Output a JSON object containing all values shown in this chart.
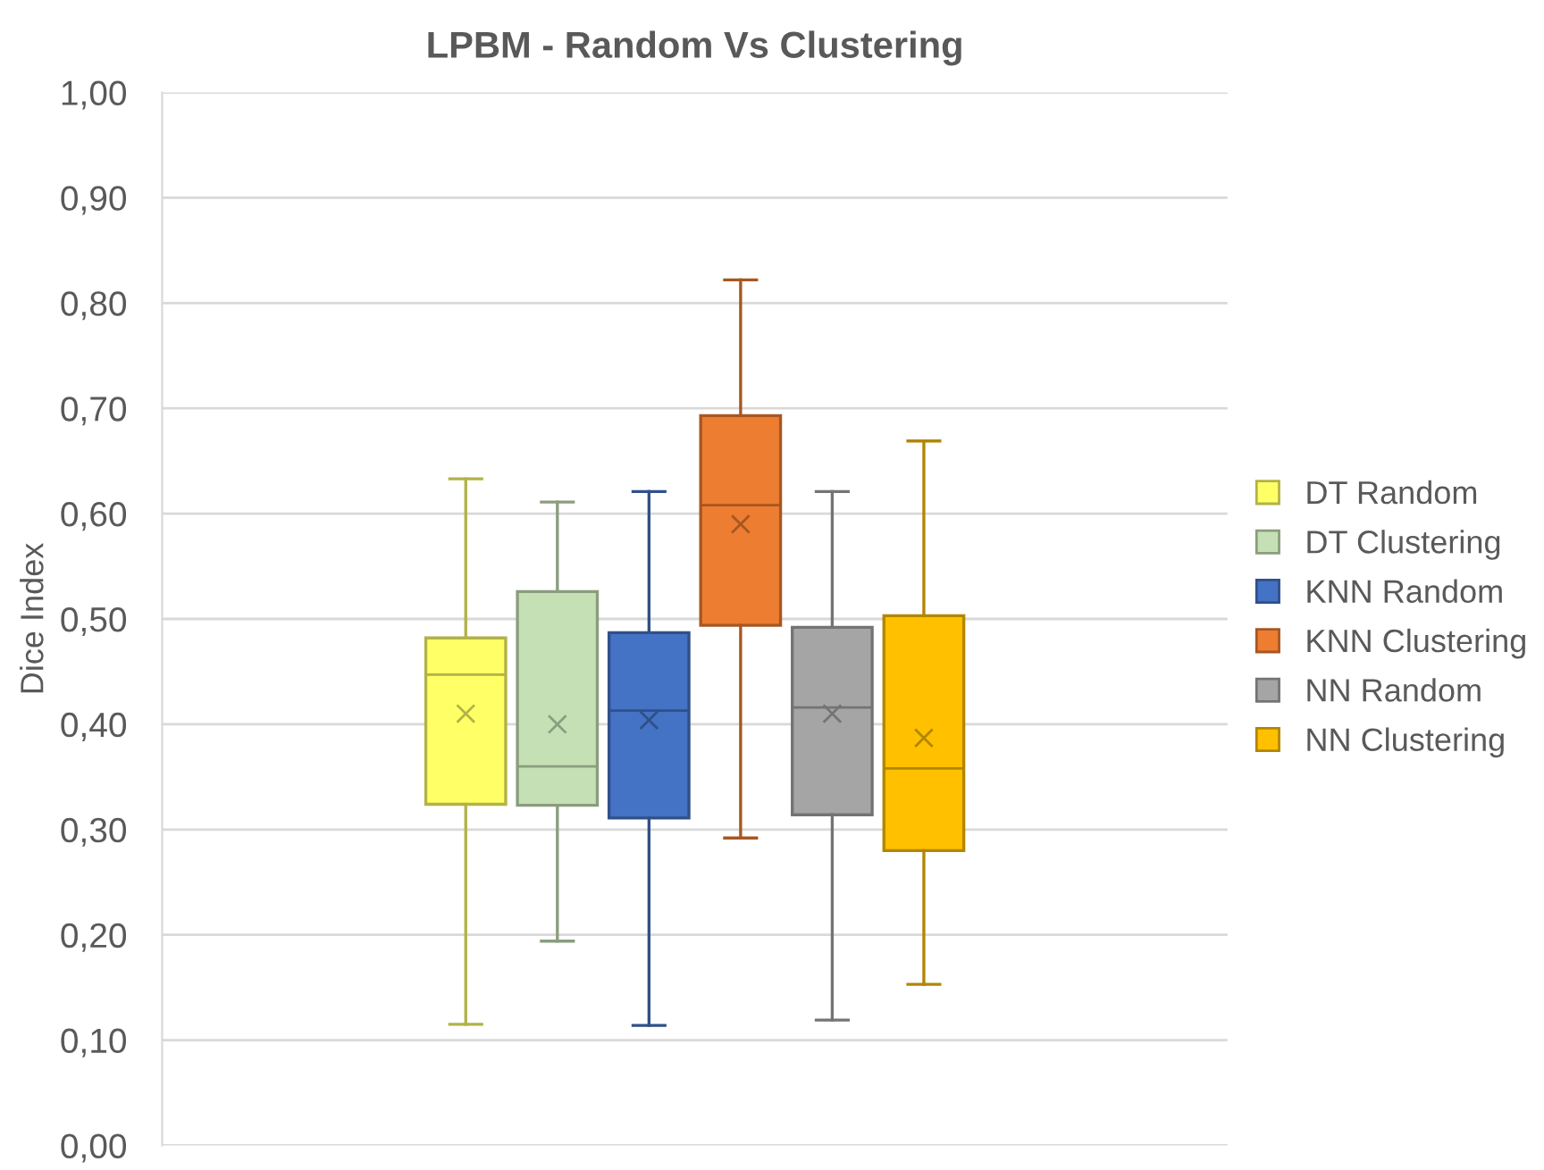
{
  "chart_data": {
    "type": "box",
    "title": "LPBM - Random Vs Clustering",
    "ylabel": "Dice Index",
    "categories": [
      null
    ],
    "series": [
      {
        "name": "DT Random",
        "color": "#ffff66",
        "boxes": [
          {
            "low": 0.115,
            "q1": 0.324,
            "median": 0.447,
            "q3": 0.482,
            "high": 0.633,
            "mean": 0.41
          }
        ]
      },
      {
        "name": "DT Clustering",
        "color": "#c5e0b4",
        "boxes": [
          {
            "low": 0.194,
            "q1": 0.323,
            "median": 0.36,
            "q3": 0.526,
            "high": 0.611,
            "mean": 0.4
          }
        ]
      },
      {
        "name": "KNN Random",
        "color": "#4472c4",
        "boxes": [
          {
            "low": 0.114,
            "q1": 0.311,
            "median": 0.413,
            "q3": 0.487,
            "high": 0.621,
            "mean": 0.404
          }
        ]
      },
      {
        "name": "KNN Clustering",
        "color": "#ed7d31",
        "boxes": [
          {
            "low": 0.292,
            "q1": 0.494,
            "median": 0.608,
            "q3": 0.693,
            "high": 0.822,
            "mean": 0.59
          }
        ]
      },
      {
        "name": "NN Random",
        "color": "#a5a5a5",
        "boxes": [
          {
            "low": 0.119,
            "q1": 0.314,
            "median": 0.416,
            "q3": 0.492,
            "high": 0.621,
            "mean": 0.41
          }
        ]
      },
      {
        "name": "NN Clustering",
        "color": "#ffc000",
        "boxes": [
          {
            "low": 0.153,
            "q1": 0.28,
            "median": 0.358,
            "q3": 0.503,
            "high": 0.669,
            "mean": 0.387
          }
        ]
      }
    ],
    "ylim": [
      0,
      1
    ],
    "yticks": [
      {
        "value": 0,
        "label": "0,00"
      },
      {
        "value": 0.1,
        "label": "0,10"
      },
      {
        "value": 0.2,
        "label": "0,20"
      },
      {
        "value": 0.3,
        "label": "0,30"
      },
      {
        "value": 0.4,
        "label": "0,40"
      },
      {
        "value": 0.5,
        "label": "0,50"
      },
      {
        "value": 0.6,
        "label": "0,60"
      },
      {
        "value": 0.7,
        "label": "0,70"
      },
      {
        "value": 0.8,
        "label": "0,80"
      },
      {
        "value": 0.9,
        "label": "0,90"
      },
      {
        "value": 1,
        "label": "1,00"
      }
    ],
    "grid": "y",
    "legend": "right"
  }
}
